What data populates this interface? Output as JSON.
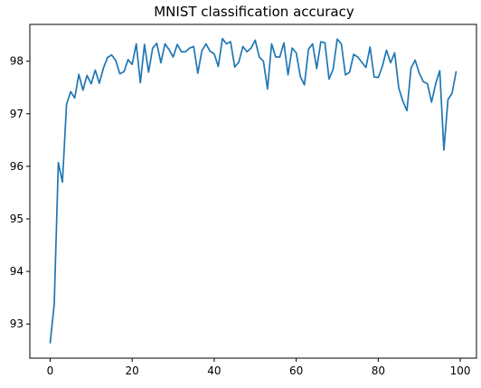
{
  "chart_data": {
    "type": "line",
    "title": "MNIST classification accuracy",
    "xlabel": "",
    "ylabel": "",
    "xlim": [
      -4.95,
      103.95
    ],
    "ylim": [
      92.35,
      98.7
    ],
    "xticks": [
      0,
      20,
      40,
      60,
      80,
      100
    ],
    "yticks": [
      93,
      94,
      95,
      96,
      97,
      98
    ],
    "grid": false,
    "line_color": "#1f77b4",
    "series": [
      {
        "values": [
          92.63,
          93.38,
          96.07,
          95.7,
          97.18,
          97.42,
          97.3,
          97.75,
          97.45,
          97.73,
          97.57,
          97.83,
          97.58,
          97.87,
          98.07,
          98.12,
          98.01,
          97.76,
          97.8,
          98.03,
          97.94,
          98.33,
          97.59,
          98.32,
          97.79,
          98.25,
          98.34,
          97.97,
          98.33,
          98.22,
          98.08,
          98.32,
          98.18,
          98.18,
          98.25,
          98.28,
          97.77,
          98.2,
          98.33,
          98.19,
          98.14,
          97.9,
          98.43,
          98.33,
          98.37,
          97.89,
          97.98,
          98.28,
          98.18,
          98.25,
          98.4,
          98.08,
          98.0,
          97.47,
          98.33,
          98.08,
          98.08,
          98.35,
          97.74,
          98.25,
          98.16,
          97.71,
          97.55,
          98.23,
          98.33,
          97.86,
          98.37,
          98.35,
          97.66,
          97.85,
          98.42,
          98.33,
          97.74,
          97.79,
          98.13,
          98.08,
          97.98,
          97.88,
          98.27,
          97.7,
          97.69,
          97.9,
          98.21,
          97.97,
          98.16,
          97.49,
          97.24,
          97.06,
          97.87,
          98.02,
          97.77,
          97.61,
          97.57,
          97.22,
          97.57,
          97.82,
          96.31,
          97.27,
          97.39,
          97.81
        ]
      }
    ]
  }
}
